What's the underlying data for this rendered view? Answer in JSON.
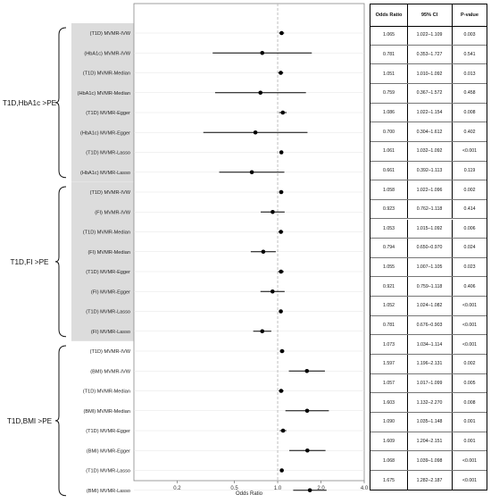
{
  "chart_data": {
    "type": "forest",
    "xlabel": "Odds Ratio",
    "x_scale": "log",
    "xlim": [
      0.1,
      4.0
    ],
    "xticks": [
      "0.2",
      "0.5",
      "1.0",
      "2.0",
      "4.0"
    ],
    "xtick_values": [
      0.2,
      0.5,
      1.0,
      2.0,
      4.0
    ],
    "reference_line": 1.0,
    "groups": [
      {
        "label": "T1D,HbA1c >PE",
        "shaded": true
      },
      {
        "label": "T1D,FI >PE",
        "shaded": true
      },
      {
        "label": "T1D,BMI >PE",
        "shaded": false
      }
    ],
    "table_headers": [
      "Odds Ratio",
      "95% CI",
      "P-value"
    ],
    "rows": [
      {
        "group": 0,
        "label": "(T1D) MVMR-IVW",
        "or": 1.065,
        "lo": 1.022,
        "hi": 1.109,
        "or_text": "1.065",
        "ci_text": "1.022–1.109",
        "p_text": "0.003"
      },
      {
        "group": 0,
        "label": "(HbA1c) MVMR-IVW",
        "or": 0.781,
        "lo": 0.353,
        "hi": 1.727,
        "or_text": "0.781",
        "ci_text": "0.353–1.727",
        "p_text": "0.541"
      },
      {
        "group": 0,
        "label": "(T1D) MVMR-Median",
        "or": 1.051,
        "lo": 1.01,
        "hi": 1.092,
        "or_text": "1.051",
        "ci_text": "1.010–1.092",
        "p_text": "0.013"
      },
      {
        "group": 0,
        "label": "(HbA1c) MVMR-Median",
        "or": 0.759,
        "lo": 0.367,
        "hi": 1.572,
        "or_text": "0.759",
        "ci_text": "0.367–1.572",
        "p_text": "0.458"
      },
      {
        "group": 0,
        "label": "(T1D) MVMR-Egger",
        "or": 1.086,
        "lo": 1.022,
        "hi": 1.154,
        "or_text": "1.086",
        "ci_text": "1.022–1.154",
        "p_text": "0.008"
      },
      {
        "group": 0,
        "label": "(HbA1c) MVMR-Egger",
        "or": 0.7,
        "lo": 0.304,
        "hi": 1.612,
        "or_text": "0.700",
        "ci_text": "0.304–1.612",
        "p_text": "0.402"
      },
      {
        "group": 0,
        "label": "(T1D) MVMR-Lasso",
        "or": 1.061,
        "lo": 1.032,
        "hi": 1.092,
        "or_text": "1.061",
        "ci_text": "1.032–1.092",
        "p_text": "<0.001"
      },
      {
        "group": 0,
        "label": "(HbA1c) MVMR-Lasso",
        "or": 0.661,
        "lo": 0.392,
        "hi": 1.113,
        "or_text": "0.661",
        "ci_text": "0.392–1.113",
        "p_text": "0.119"
      },
      {
        "group": 1,
        "label": "(T1D) MVMR-IVW",
        "or": 1.058,
        "lo": 1.022,
        "hi": 1.096,
        "or_text": "1.058",
        "ci_text": "1.022–1.096",
        "p_text": "0.002"
      },
      {
        "group": 1,
        "label": "(FI) MVMR-IVW",
        "or": 0.923,
        "lo": 0.762,
        "hi": 1.118,
        "or_text": "0.923",
        "ci_text": "0.762–1.118",
        "p_text": "0.414"
      },
      {
        "group": 1,
        "label": "(T1D) MVMR-Median",
        "or": 1.053,
        "lo": 1.015,
        "hi": 1.092,
        "or_text": "1.053",
        "ci_text": "1.015–1.092",
        "p_text": "0.006"
      },
      {
        "group": 1,
        "label": "(FI) MVMR-Median",
        "or": 0.794,
        "lo": 0.65,
        "hi": 0.97,
        "or_text": "0.794",
        "ci_text": "0.650–0.970",
        "p_text": "0.024"
      },
      {
        "group": 1,
        "label": "(T1D) MVMR-Egger",
        "or": 1.055,
        "lo": 1.007,
        "hi": 1.105,
        "or_text": "1.055",
        "ci_text": "1.007–1.105",
        "p_text": "0.023"
      },
      {
        "group": 1,
        "label": "(FI) MVMR-Egger",
        "or": 0.921,
        "lo": 0.759,
        "hi": 1.118,
        "or_text": "0.921",
        "ci_text": "0.759–1.118",
        "p_text": "0.406"
      },
      {
        "group": 1,
        "label": "(T1D) MVMR-Lasso",
        "or": 1.052,
        "lo": 1.024,
        "hi": 1.082,
        "or_text": "1.052",
        "ci_text": "1.024–1.082",
        "p_text": "<0.001"
      },
      {
        "group": 1,
        "label": "(FI) MVMR-Lasso",
        "or": 0.781,
        "lo": 0.676,
        "hi": 0.903,
        "or_text": "0.781",
        "ci_text": "0.676–0.903",
        "p_text": "<0.001"
      },
      {
        "group": 2,
        "label": "(T1D) MVMR-IVW",
        "or": 1.073,
        "lo": 1.034,
        "hi": 1.114,
        "or_text": "1.073",
        "ci_text": "1.034–1.114",
        "p_text": "<0.001"
      },
      {
        "group": 2,
        "label": "(BMI) MVMR-IVW",
        "or": 1.597,
        "lo": 1.196,
        "hi": 2.131,
        "or_text": "1.597",
        "ci_text": "1.196–2.131",
        "p_text": "0.002"
      },
      {
        "group": 2,
        "label": "(T1D) MVMR-Median",
        "or": 1.057,
        "lo": 1.017,
        "hi": 1.099,
        "or_text": "1.057",
        "ci_text": "1.017–1.099",
        "p_text": "0.005"
      },
      {
        "group": 2,
        "label": "(BMI) MVMR-Median",
        "or": 1.603,
        "lo": 1.132,
        "hi": 2.27,
        "or_text": "1.603",
        "ci_text": "1.132–2.270",
        "p_text": "0.008"
      },
      {
        "group": 2,
        "label": "(T1D) MVMR-Egger",
        "or": 1.09,
        "lo": 1.035,
        "hi": 1.148,
        "or_text": "1.090",
        "ci_text": "1.035–1.148",
        "p_text": "0.001"
      },
      {
        "group": 2,
        "label": "(BMI) MVMR-Egger",
        "or": 1.609,
        "lo": 1.204,
        "hi": 2.151,
        "or_text": "1.609",
        "ci_text": "1.204–2.151",
        "p_text": "0.001"
      },
      {
        "group": 2,
        "label": "(T1D) MVMR-Lasso",
        "or": 1.068,
        "lo": 1.039,
        "hi": 1.098,
        "or_text": "1.068",
        "ci_text": "1.039–1.098",
        "p_text": "<0.001"
      },
      {
        "group": 2,
        "label": "(BMI) MVMR-Lasso",
        "or": 1.675,
        "lo": 1.282,
        "hi": 2.187,
        "or_text": "1.675",
        "ci_text": "1.282–2.187",
        "p_text": "<0.001"
      }
    ],
    "colors": {
      "point": "#000000",
      "shade": "#dcdcdc",
      "reference": "#b0b0b0",
      "grid": "#e4e4e4"
    }
  }
}
